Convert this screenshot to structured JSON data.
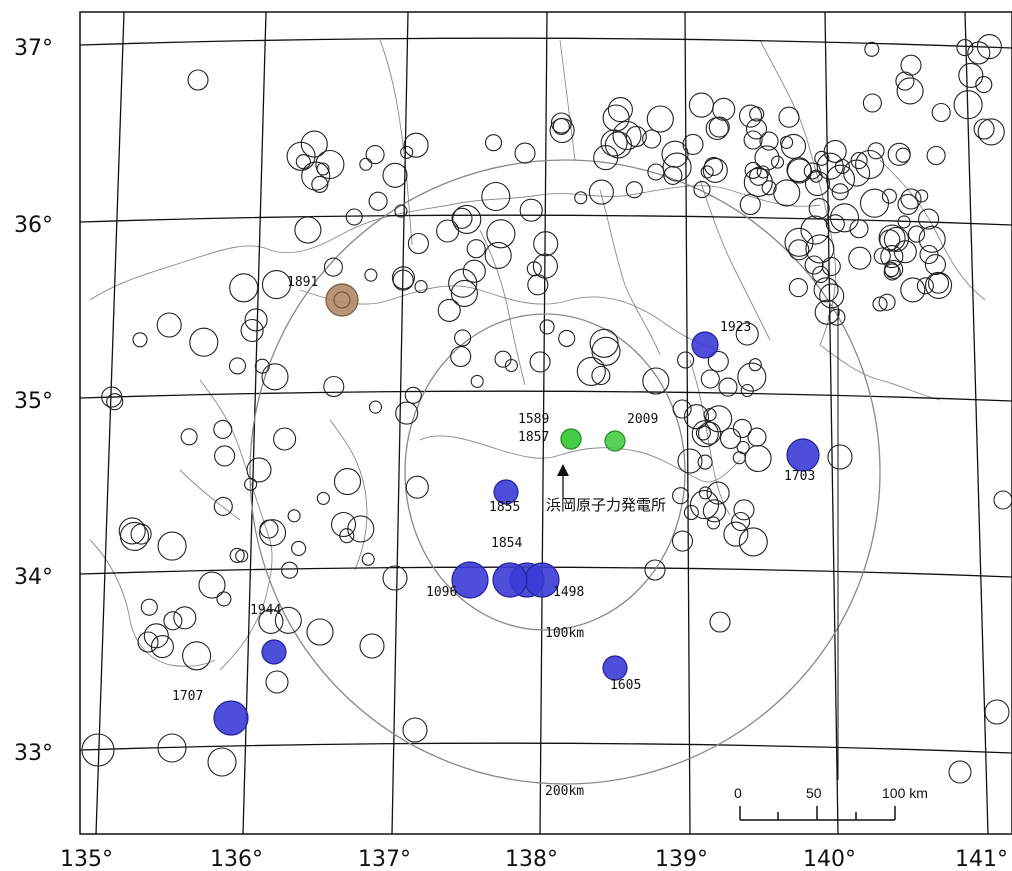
{
  "latitude_labels": [
    "37°",
    "36°",
    "35°",
    "34°",
    "33°"
  ],
  "longitude_labels": [
    "135°",
    "136°",
    "137°",
    "138°",
    "139°",
    "140°",
    "141°"
  ],
  "range_labels": [
    "100km",
    "200km"
  ],
  "plant_label": "浜岡原子力発電所",
  "scale_bar": {
    "labels": [
      "0",
      "50",
      "100 km"
    ]
  },
  "historical_earthquakes": [
    {
      "year": "1891",
      "color": "#b08a66"
    },
    {
      "year": "1923",
      "color": "#3b3bd6"
    },
    {
      "year": "1703",
      "color": "#3b3bd6"
    },
    {
      "year": "1589",
      "color": "#44cc44"
    },
    {
      "year": "1857",
      "color": "#44cc44"
    },
    {
      "year": "2009",
      "color": "#44cc44"
    },
    {
      "year": "1855",
      "color": "#3b3bd6"
    },
    {
      "year": "1854",
      "color": "#3b3bd6"
    },
    {
      "year": "1096",
      "color": "#3b3bd6"
    },
    {
      "year": "1498",
      "color": "#3b3bd6"
    },
    {
      "year": "1944",
      "color": "#3b3bd6"
    },
    {
      "year": "1605",
      "color": "#3b3bd6"
    },
    {
      "year": "1707",
      "color": "#3b3bd6"
    }
  ]
}
